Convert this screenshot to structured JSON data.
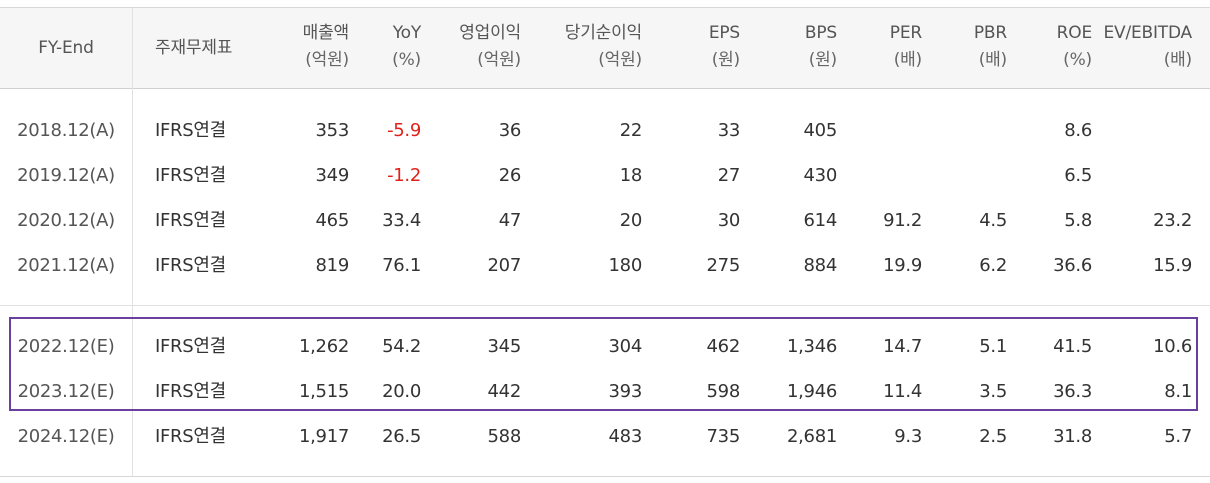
{
  "headers": [
    {
      "l1": "FY-End",
      "l2": ""
    },
    {
      "l1": "주재무제표",
      "l2": ""
    },
    {
      "l1": "매출액",
      "l2": "(억원)"
    },
    {
      "l1": "YoY",
      "l2": "(%)"
    },
    {
      "l1": "영업이익",
      "l2": "(억원)"
    },
    {
      "l1": "당기순이익",
      "l2": "(억원)"
    },
    {
      "l1": "EPS",
      "l2": "(원)"
    },
    {
      "l1": "BPS",
      "l2": "(원)"
    },
    {
      "l1": "PER",
      "l2": "(배)"
    },
    {
      "l1": "PBR",
      "l2": "(배)"
    },
    {
      "l1": "ROE",
      "l2": "(%)"
    },
    {
      "l1": "EV/EBITDA",
      "l2": "(배)"
    }
  ],
  "rows": [
    {
      "fy": "2018.12(A)",
      "basis": "IFRS연결",
      "sales": "353",
      "yoy": "-5.9",
      "op": "36",
      "net": "22",
      "eps": "33",
      "bps": "405",
      "per": "",
      "pbr": "",
      "roe": "8.6",
      "ev": ""
    },
    {
      "fy": "2019.12(A)",
      "basis": "IFRS연결",
      "sales": "349",
      "yoy": "-1.2",
      "op": "26",
      "net": "18",
      "eps": "27",
      "bps": "430",
      "per": "",
      "pbr": "",
      "roe": "6.5",
      "ev": ""
    },
    {
      "fy": "2020.12(A)",
      "basis": "IFRS연결",
      "sales": "465",
      "yoy": "33.4",
      "op": "47",
      "net": "20",
      "eps": "30",
      "bps": "614",
      "per": "91.2",
      "pbr": "4.5",
      "roe": "5.8",
      "ev": "23.2"
    },
    {
      "fy": "2021.12(A)",
      "basis": "IFRS연결",
      "sales": "819",
      "yoy": "76.1",
      "op": "207",
      "net": "180",
      "eps": "275",
      "bps": "884",
      "per": "19.9",
      "pbr": "6.2",
      "roe": "36.6",
      "ev": "15.9"
    },
    {
      "fy": "2022.12(E)",
      "basis": "IFRS연결",
      "sales": "1,262",
      "yoy": "54.2",
      "op": "345",
      "net": "304",
      "eps": "462",
      "bps": "1,346",
      "per": "14.7",
      "pbr": "5.1",
      "roe": "41.5",
      "ev": "10.6"
    },
    {
      "fy": "2023.12(E)",
      "basis": "IFRS연결",
      "sales": "1,515",
      "yoy": "20.0",
      "op": "442",
      "net": "393",
      "eps": "598",
      "bps": "1,946",
      "per": "11.4",
      "pbr": "3.5",
      "roe": "36.3",
      "ev": "8.1"
    },
    {
      "fy": "2024.12(E)",
      "basis": "IFRS연결",
      "sales": "1,917",
      "yoy": "26.5",
      "op": "588",
      "net": "483",
      "eps": "735",
      "bps": "2,681",
      "per": "9.3",
      "pbr": "2.5",
      "roe": "31.8",
      "ev": "5.7"
    }
  ],
  "colors": {
    "negative": "#e0211a",
    "highlight_border": "#6a3fa0"
  }
}
